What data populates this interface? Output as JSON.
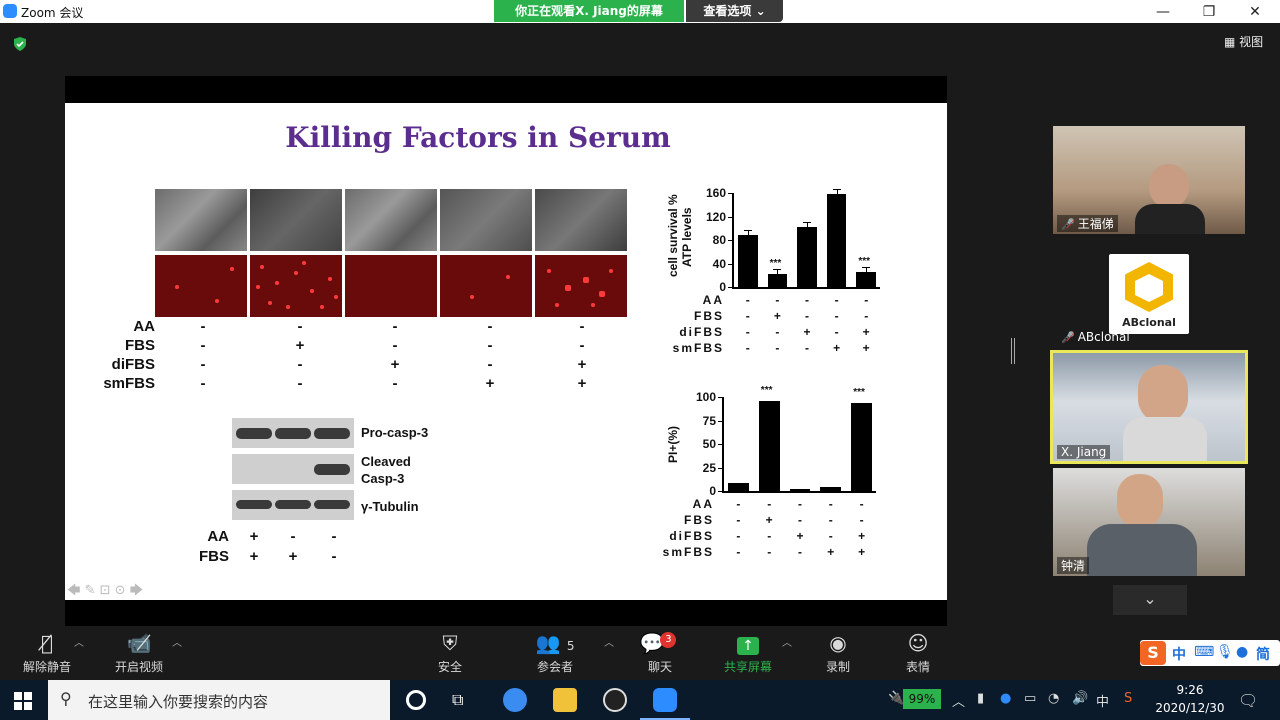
{
  "window": {
    "title": "Zoom 会议",
    "share_banner": "你正在观看X. Jiang的屏幕",
    "view_options": "查看选项",
    "view_toggle": "视图"
  },
  "slide": {
    "title": "Killing Factors in Serum",
    "treatment_rows": {
      "labels": [
        "AA",
        "FBS",
        "diFBS",
        "smFBS"
      ],
      "values": [
        [
          "-",
          "-",
          "-",
          "-",
          "-"
        ],
        [
          "-",
          "+",
          "-",
          "-",
          "-"
        ],
        [
          "-",
          "-",
          "+",
          "-",
          "+"
        ],
        [
          "-",
          "-",
          "-",
          "+",
          "+"
        ]
      ]
    },
    "western_blot": {
      "labels": [
        "Pro-casp-3",
        "Cleaved Casp-3",
        "γ-Tubulin"
      ],
      "label_cleaved_line1": "Cleaved",
      "label_cleaved_line2": "Casp-3",
      "conditions": {
        "labels": [
          "AA",
          "FBS"
        ],
        "values": [
          [
            "+",
            "-",
            "-"
          ],
          [
            "+",
            "+",
            "-"
          ]
        ]
      }
    }
  },
  "chart_data": [
    {
      "type": "bar",
      "ylabel": "cell survival % ATP levels",
      "ylabel_line1": "cell survival %",
      "ylabel_line2": "ATP levels",
      "ylim": [
        0,
        160
      ],
      "yticks": [
        "160",
        "120",
        "80",
        "40",
        "0"
      ],
      "values": [
        88,
        22,
        102,
        158,
        25
      ],
      "annotations": [
        "",
        "***",
        "",
        "",
        "***"
      ],
      "groups": {
        "labels": [
          "AA",
          "FBS",
          "diFBS",
          "smFBS"
        ],
        "values": [
          [
            "-",
            "-",
            "-",
            "-",
            "-"
          ],
          [
            "-",
            "+",
            "-",
            "-",
            "-"
          ],
          [
            "-",
            "-",
            "+",
            "-",
            "+"
          ],
          [
            "-",
            "-",
            "-",
            "+",
            "+"
          ]
        ]
      }
    },
    {
      "type": "bar",
      "ylabel": "PI+(%)",
      "ylim": [
        0,
        100
      ],
      "yticks": [
        "100",
        "75",
        "50",
        "25",
        "0"
      ],
      "values": [
        8,
        96,
        2,
        4,
        94
      ],
      "annotations": [
        "",
        "***",
        "",
        "",
        "***"
      ],
      "groups": {
        "labels": [
          "AA",
          "FBS",
          "diFBS",
          "smFBS"
        ],
        "values": [
          [
            "-",
            "-",
            "-",
            "-",
            "-"
          ],
          [
            "-",
            "+",
            "-",
            "-",
            "-"
          ],
          [
            "-",
            "-",
            "+",
            "-",
            "+"
          ],
          [
            "-",
            "-",
            "-",
            "+",
            "+"
          ]
        ]
      }
    }
  ],
  "participants": [
    {
      "name": "王福俤",
      "muted": true
    },
    {
      "name": "ABclonal",
      "muted": true,
      "logo_text": "ABclonal"
    },
    {
      "name": "X. Jiang",
      "muted": false,
      "active_speaker": true
    },
    {
      "name": "钟清",
      "muted": false
    }
  ],
  "toolbar": {
    "mute": "解除静音",
    "video": "开启视频",
    "security": "安全",
    "participants": "参会者",
    "participants_count": "5",
    "chat": "聊天",
    "chat_badge": "3",
    "share": "共享屏幕",
    "record": "录制",
    "reactions": "表情"
  },
  "ime": {
    "items": [
      "中",
      "简"
    ]
  },
  "taskbar": {
    "search_placeholder": "在这里输入你要搜索的内容",
    "battery": "99%",
    "time": "9:26",
    "date": "2020/12/30"
  },
  "colors": {
    "title_purple": "#5b2d8e",
    "share_green": "#2bb24c",
    "active_border": "#e8e85a"
  }
}
